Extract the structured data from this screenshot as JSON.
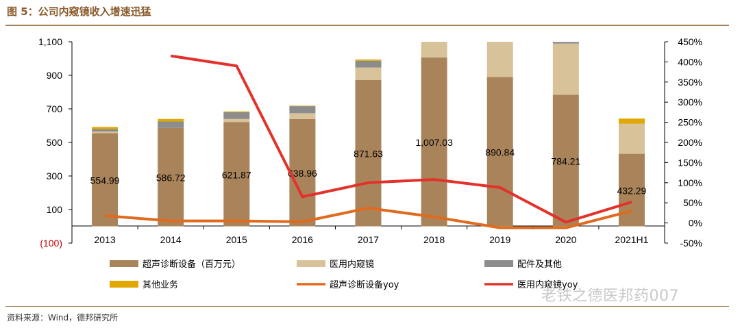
{
  "header": {
    "title": "图 5：公司内窥镜收入增速迅猛"
  },
  "source": "资料来源：Wind，德邦研究所",
  "watermark": "老铁之德医邦药007",
  "colors": {
    "ultrasound": "#a9845a",
    "endoscope": "#d8c29a",
    "parts": "#8c8c8c",
    "other": "#e0a800",
    "ultrasound_yoy": "#e06a1e",
    "endoscope_yoy": "#e3312b",
    "title": "#8a5a2b"
  },
  "chart_data": {
    "type": "bar",
    "stacked": true,
    "title": "图 5：公司内窥镜收入增速迅猛",
    "categories": [
      "2013",
      "2014",
      "2015",
      "2016",
      "2017",
      "2018",
      "2019",
      "2020",
      "2021H1"
    ],
    "left_axis": {
      "ylim": [
        -100,
        1100
      ],
      "ticks": [
        -100,
        100,
        300,
        500,
        700,
        900,
        1100
      ],
      "tick_labels": [
        "(100)",
        "100",
        "300",
        "500",
        "700",
        "900",
        "1,100"
      ]
    },
    "right_axis": {
      "ylim": [
        -50,
        450
      ],
      "ticks": [
        -50,
        0,
        50,
        100,
        150,
        200,
        250,
        300,
        350,
        400,
        450
      ],
      "tick_labels": [
        "-50%",
        "0%",
        "50%",
        "100%",
        "150%",
        "200%",
        "250%",
        "300%",
        "350%",
        "400%",
        "450%"
      ]
    },
    "series": [
      {
        "name": "超声诊断设备（百万元）",
        "key": "ultrasound",
        "kind": "bar",
        "axis": "left",
        "values": [
          554.99,
          586.72,
          621.87,
          638.96,
          871.63,
          1007.03,
          890.84,
          784.21,
          432.29
        ],
        "labels": [
          "554.99",
          "586.72",
          "621.87",
          "638.96",
          "871.63",
          "1,007.03",
          "890.84",
          "784.21",
          "432.29"
        ]
      },
      {
        "name": "医用内窥镜",
        "key": "endoscope",
        "kind": "bar",
        "axis": "left",
        "values": [
          10,
          0,
          18,
          35,
          75,
          100,
          210,
          305,
          180
        ]
      },
      {
        "name": "配件及其他",
        "key": "parts",
        "kind": "bar",
        "axis": "left",
        "values": [
          15,
          38,
          40,
          42,
          40,
          0,
          0,
          10,
          0
        ]
      },
      {
        "name": "其他业务",
        "key": "other",
        "kind": "bar",
        "axis": "left",
        "values": [
          12,
          15,
          5,
          3,
          8,
          0,
          0,
          0,
          30
        ]
      },
      {
        "name": "超声诊断设备yoy",
        "key": "ultrasound_yoy",
        "kind": "line",
        "axis": "right",
        "values": [
          18,
          5,
          5,
          3,
          37,
          15,
          -12,
          -12,
          30
        ]
      },
      {
        "name": "医用内窥镜yoy",
        "key": "endoscope_yoy",
        "kind": "line",
        "axis": "right",
        "values": [
          null,
          415,
          390,
          65,
          100,
          108,
          88,
          2,
          52
        ]
      }
    ]
  }
}
